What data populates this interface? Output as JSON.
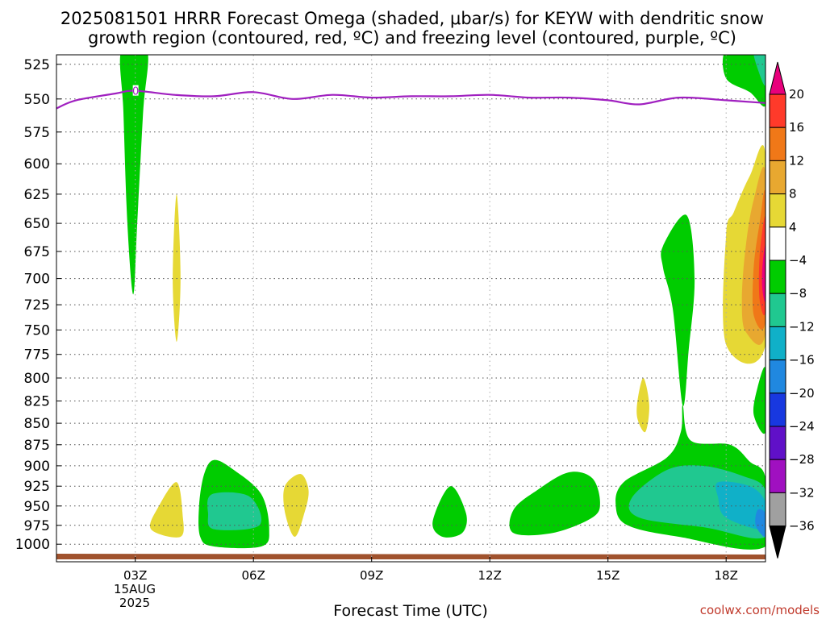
{
  "chart_data": {
    "type": "heatmap",
    "title_line1": "2025081501 HRRR Forecast Omega (shaded, μbar/s) for KEYW with dendritic snow",
    "title_line2": "growth region (contoured, red, ºC) and freezing level (contoured, purple, ºC)",
    "xlabel": "Forecast Time (UTC)",
    "credit": "coolwx.com/models",
    "x_ticks": [
      "03Z",
      "06Z",
      "09Z",
      "12Z",
      "15Z",
      "18Z"
    ],
    "x_tick_hours": [
      3,
      6,
      9,
      12,
      15,
      18
    ],
    "xlim": [
      1,
      19
    ],
    "date_label": {
      "day": "15AUG",
      "year": "2025"
    },
    "y_ticks": [
      525,
      550,
      575,
      600,
      625,
      650,
      675,
      700,
      725,
      750,
      775,
      800,
      825,
      850,
      875,
      900,
      925,
      950,
      975,
      1000
    ],
    "ylim": [
      515,
      1015
    ],
    "y_scale": "log",
    "grid": true,
    "freezing_level": {
      "label": "0",
      "color": "#a020c0",
      "points": [
        [
          1,
          557
        ],
        [
          1.5,
          551
        ],
        [
          2.5,
          546
        ],
        [
          3,
          544
        ],
        [
          4,
          547
        ],
        [
          5,
          548
        ],
        [
          6,
          545
        ],
        [
          7,
          550
        ],
        [
          8,
          547
        ],
        [
          9,
          549
        ],
        [
          10,
          548
        ],
        [
          11,
          548
        ],
        [
          12,
          547
        ],
        [
          13,
          549
        ],
        [
          14,
          549
        ],
        [
          15,
          551
        ],
        [
          15.8,
          554
        ],
        [
          16.8,
          549
        ],
        [
          18,
          551
        ],
        [
          19,
          553
        ]
      ]
    },
    "colorbar": {
      "labels": [
        "20",
        "16",
        "12",
        "8",
        "4",
        "-4",
        "-8",
        "-12",
        "-16",
        "-20",
        "-24",
        "-28",
        "-32",
        "-36"
      ],
      "colors": [
        "#e8007c",
        "#ff3a2a",
        "#f07818",
        "#e8a830",
        "#e6d835",
        "#ffffff",
        "#00cc00",
        "#20c890",
        "#10b0c8",
        "#2088e0",
        "#1838e0",
        "#6010c8",
        "#a010c0",
        "#a0a0a0"
      ],
      "extend_low": "#000000"
    },
    "ground_color": "#a0522d",
    "regions": [
      {
        "level": "-4",
        "color": "#00cc00",
        "points": [
          [
            2.65,
            515
          ],
          [
            3.3,
            515
          ],
          [
            3.2,
            560
          ],
          [
            3.05,
            650
          ],
          [
            2.95,
            715
          ],
          [
            2.8,
            650
          ],
          [
            2.7,
            560
          ]
        ]
      },
      {
        "level": "4",
        "color": "#e6d835",
        "points": [
          [
            4.05,
            625
          ],
          [
            4.15,
            700
          ],
          [
            4.05,
            762
          ],
          [
            3.95,
            700
          ]
        ]
      },
      {
        "level": "4",
        "color": "#e6d835",
        "points": [
          [
            4.05,
            920
          ],
          [
            4.2,
            960
          ],
          [
            4.15,
            990
          ],
          [
            3.4,
            980
          ],
          [
            3.6,
            950
          ]
        ]
      },
      {
        "level": "-4",
        "color": "#00cc00",
        "points": [
          [
            5.0,
            893
          ],
          [
            5.5,
            905
          ],
          [
            6.2,
            935
          ],
          [
            6.4,
            980
          ],
          [
            6.2,
            1003
          ],
          [
            5.0,
            1003
          ],
          [
            4.65,
            990
          ],
          [
            4.62,
            950
          ],
          [
            4.75,
            910
          ]
        ]
      },
      {
        "level": "-8",
        "color": "#20c890",
        "points": [
          [
            4.95,
            935
          ],
          [
            5.9,
            938
          ],
          [
            6.15,
            975
          ],
          [
            5.0,
            980
          ],
          [
            4.85,
            960
          ]
        ]
      },
      {
        "level": "4",
        "color": "#e6d835",
        "points": [
          [
            7.2,
            910
          ],
          [
            7.4,
            930
          ],
          [
            7.3,
            958
          ],
          [
            7.05,
            990
          ],
          [
            6.8,
            958
          ],
          [
            6.8,
            925
          ]
        ]
      },
      {
        "level": "-4",
        "color": "#00cc00",
        "points": [
          [
            11.0,
            925
          ],
          [
            11.4,
            960
          ],
          [
            11.3,
            985
          ],
          [
            10.8,
            990
          ],
          [
            10.55,
            970
          ]
        ]
      },
      {
        "level": "-4",
        "color": "#00cc00",
        "points": [
          [
            14.0,
            908
          ],
          [
            14.6,
            915
          ],
          [
            14.8,
            945
          ],
          [
            14.6,
            965
          ],
          [
            13.6,
            985
          ],
          [
            12.6,
            985
          ],
          [
            12.6,
            955
          ],
          [
            13.2,
            930
          ]
        ]
      },
      {
        "level": "4",
        "color": "#e6d835",
        "points": [
          [
            15.9,
            800
          ],
          [
            16.05,
            830
          ],
          [
            15.95,
            860
          ],
          [
            15.75,
            845
          ],
          [
            15.75,
            825
          ]
        ]
      },
      {
        "level": "-4",
        "color": "#00cc00",
        "points": [
          [
            17.0,
            643
          ],
          [
            17.2,
            700
          ],
          [
            17.05,
            770
          ],
          [
            16.9,
            830
          ],
          [
            16.65,
            730
          ],
          [
            16.4,
            690
          ],
          [
            16.4,
            670
          ]
        ]
      },
      {
        "level": "-4",
        "color": "#00cc00",
        "points": [
          [
            16.9,
            830
          ],
          [
            17.1,
            870
          ],
          [
            18.1,
            875
          ],
          [
            18.6,
            895
          ],
          [
            19,
            915
          ],
          [
            19,
            1003
          ],
          [
            16.8,
            990
          ],
          [
            15.5,
            975
          ],
          [
            15.2,
            950
          ],
          [
            15.4,
            920
          ],
          [
            16.5,
            890
          ],
          [
            16.85,
            860
          ]
        ]
      },
      {
        "level": "-8",
        "color": "#20c890",
        "points": [
          [
            16.5,
            905
          ],
          [
            17.4,
            900
          ],
          [
            18.4,
            912
          ],
          [
            19,
            930
          ],
          [
            19,
            990
          ],
          [
            17.5,
            978
          ],
          [
            15.8,
            965
          ],
          [
            15.6,
            940
          ]
        ]
      },
      {
        "level": "-12",
        "color": "#10b0c8",
        "points": [
          [
            17.8,
            920
          ],
          [
            18.6,
            925
          ],
          [
            19,
            945
          ],
          [
            19,
            980
          ],
          [
            18.0,
            965
          ],
          [
            17.8,
            940
          ]
        ]
      },
      {
        "level": "-16",
        "color": "#2088e0",
        "points": [
          [
            18.8,
            955
          ],
          [
            19,
            960
          ],
          [
            19,
            990
          ],
          [
            18.75,
            975
          ]
        ]
      },
      {
        "level": "-4",
        "color": "#00cc00",
        "points": [
          [
            18.0,
            515
          ],
          [
            18.8,
            515
          ],
          [
            19,
            525
          ],
          [
            19,
            555
          ],
          [
            18.6,
            545
          ],
          [
            18.0,
            535
          ]
        ]
      },
      {
        "level": "-8",
        "color": "#20c890",
        "points": [
          [
            18.7,
            515
          ],
          [
            19,
            515
          ],
          [
            19,
            540
          ],
          [
            18.8,
            528
          ]
        ]
      },
      {
        "level": "-4",
        "color": "#00cc00",
        "points": [
          [
            19,
            790
          ],
          [
            18.8,
            810
          ],
          [
            18.7,
            840
          ],
          [
            19,
            860
          ]
        ]
      },
      {
        "level": "4",
        "color": "#e6d835",
        "points": [
          [
            19,
            593
          ],
          [
            18.6,
            610
          ],
          [
            18.2,
            640
          ],
          [
            18.0,
            660
          ],
          [
            18.0,
            765
          ],
          [
            19,
            765
          ]
        ]
      },
      {
        "level": "8",
        "color": "#e8a830",
        "points": [
          [
            19,
            608
          ],
          [
            18.7,
            630
          ],
          [
            18.5,
            670
          ],
          [
            18.4,
            720
          ],
          [
            18.5,
            752
          ],
          [
            19,
            752
          ]
        ]
      },
      {
        "level": "12",
        "color": "#f07818",
        "points": [
          [
            19,
            625
          ],
          [
            18.85,
            650
          ],
          [
            18.7,
            690
          ],
          [
            18.7,
            735
          ],
          [
            19,
            740
          ]
        ]
      },
      {
        "level": "16",
        "color": "#ff3a2a",
        "points": [
          [
            19,
            645
          ],
          [
            18.85,
            680
          ],
          [
            18.85,
            720
          ],
          [
            19,
            730
          ]
        ]
      },
      {
        "level": "20",
        "color": "#e8007c",
        "points": [
          [
            19,
            670
          ],
          [
            18.92,
            690
          ],
          [
            18.92,
            710
          ],
          [
            19,
            720
          ]
        ]
      }
    ]
  }
}
